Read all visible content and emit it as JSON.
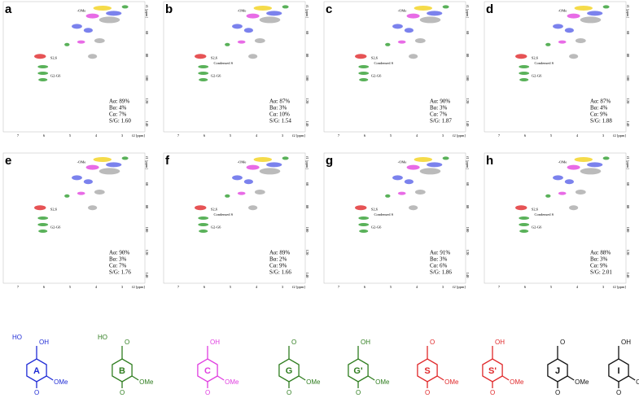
{
  "panels": [
    {
      "letter": "a",
      "stats": [
        "Aα: 89%",
        "Bα: 4%",
        "Cα: 7%",
        "S/G: 1.60"
      ]
    },
    {
      "letter": "b",
      "stats": [
        "Aα: 87%",
        "Bα: 3%",
        "Cα: 10%",
        "S/G: 1.54"
      ]
    },
    {
      "letter": "c",
      "stats": [
        "Aα: 90%",
        "Bα: 3%",
        "Cα: 7%",
        "S/G: 1.87"
      ]
    },
    {
      "letter": "d",
      "stats": [
        "Aα: 87%",
        "Bα: 4%",
        "Cα: 9%",
        "S/G: 1.88"
      ]
    },
    {
      "letter": "e",
      "stats": [
        "Aα: 90%",
        "Bα: 3%",
        "Cα: 7%",
        "S/G: 1.76"
      ]
    },
    {
      "letter": "f",
      "stats": [
        "Aα: 89%",
        "Bα: 2%",
        "Cα: 9%",
        "S/G: 1.66"
      ]
    },
    {
      "letter": "g",
      "stats": [
        "Aα: 91%",
        "Bα: 3%",
        "Cα: 6%",
        "S/G: 1.86"
      ]
    },
    {
      "letter": "h",
      "stats": [
        "Aα: 88%",
        "Bα: 3%",
        "Cα: 9%",
        "S/G: 2.01"
      ]
    }
  ],
  "axes": {
    "x_ticks": [
      "7",
      "6",
      "5",
      "4",
      "3"
    ],
    "x_title": "f2 [ppm]",
    "y_ticks": [
      "60",
      "80",
      "100",
      "120",
      "140"
    ],
    "y_title": "f1 [ppm]"
  },
  "peak_labels": {
    "ome": "-OMe",
    "condensed": "Condensed S",
    "gg": "G2-G6",
    "ss": "S2,6"
  },
  "structures": [
    {
      "label": "A",
      "color": "#1f2bd6"
    },
    {
      "label": "B",
      "color": "#2f7d1f"
    },
    {
      "label": "C",
      "color": "#e03ee0"
    },
    {
      "label": "G",
      "color": "#2f7d1f"
    },
    {
      "label": "G'",
      "color": "#2f7d1f"
    },
    {
      "label": "S",
      "color": "#e0282a"
    },
    {
      "label": "S'",
      "color": "#e0282a"
    },
    {
      "label": "J",
      "color": "#111111"
    },
    {
      "label": "I",
      "color": "#111111"
    }
  ],
  "substituents": {
    "ome": "OMe",
    "oh": "OH",
    "ho": "HO",
    "o": "O"
  }
}
